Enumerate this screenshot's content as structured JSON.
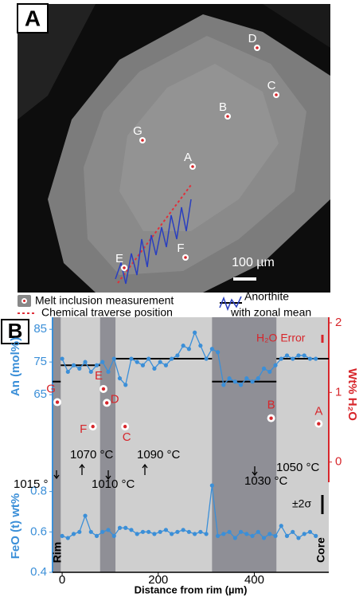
{
  "panel_a": {
    "label": "A",
    "scale_bar": "100 µm",
    "inclusions": [
      "D",
      "C",
      "B",
      "G",
      "A",
      "F",
      "E"
    ]
  },
  "legend": {
    "melt": "Melt inclusion measurement",
    "traverse": "Chemical traverse position",
    "anorthite": "Anorthite",
    "anorthite_2": "with zonal mean"
  },
  "chart_data": {
    "type": "line",
    "panel_label": "B",
    "xlabel": "Distance from rim (µm)",
    "xlim": [
      -20,
      555
    ],
    "xticks": [
      0,
      200,
      400
    ],
    "x": [
      0,
      12,
      24,
      36,
      48,
      60,
      72,
      84,
      96,
      108,
      120,
      132,
      144,
      156,
      168,
      180,
      192,
      204,
      216,
      228,
      240,
      252,
      264,
      276,
      288,
      300,
      312,
      324,
      336,
      348,
      360,
      372,
      384,
      396,
      408,
      420,
      432,
      444,
      456,
      468,
      480,
      492,
      504,
      516,
      528
    ],
    "series": [
      {
        "name": "An (mol%)",
        "color": "#3b8fd8",
        "axis": "y",
        "values": [
          76,
          72,
          74,
          73,
          75,
          72,
          74,
          75,
          72,
          76,
          70,
          68,
          76,
          75,
          74,
          76,
          73,
          75,
          74,
          76,
          77,
          80,
          79,
          84,
          80,
          76,
          79,
          78,
          68,
          70,
          69,
          68,
          70,
          69,
          70,
          73,
          72,
          74,
          76,
          77,
          76,
          77,
          77,
          76,
          76
        ]
      },
      {
        "name": "Wt% H₂O",
        "color": "#d7262b",
        "axis": "y2",
        "type": "scatter",
        "x": [
          -10,
          86,
          93,
          64,
          131,
          435,
          534
        ],
        "values": [
          0.86,
          1.05,
          0.85,
          0.51,
          0.51,
          0.63,
          0.55
        ],
        "point_labels": [
          "G",
          "E",
          "D",
          "F",
          "C",
          "B",
          "A"
        ]
      },
      {
        "name": "FeO (t) wt%",
        "color": "#3b8fd8",
        "axis": "y3",
        "values": [
          0.58,
          0.57,
          0.59,
          0.6,
          0.68,
          0.6,
          0.58,
          0.6,
          0.61,
          0.58,
          0.62,
          0.62,
          0.61,
          0.59,
          0.6,
          0.6,
          0.59,
          0.6,
          0.61,
          0.59,
          0.6,
          0.61,
          0.6,
          0.59,
          0.6,
          0.59,
          0.83,
          0.58,
          0.59,
          0.6,
          0.57,
          0.6,
          0.59,
          0.58,
          0.6,
          0.57,
          0.59,
          0.58,
          0.63,
          0.58,
          0.6,
          0.57,
          0.59,
          0.6,
          0.58
        ]
      }
    ],
    "ylim": [
      38.2,
      88.7
    ],
    "yticks": [
      65,
      75,
      85
    ],
    "y2lim": [
      -0.29,
      2.08
    ],
    "y2ticks": [
      0,
      1,
      2
    ],
    "y3lim": [
      0.4,
      0.846
    ],
    "y3ticks": [
      0.4,
      0.6,
      0.8
    ],
    "zonal_means": [
      {
        "x": [
          -20,
          -3
        ],
        "value": 69
      },
      {
        "x": [
          -3,
          79
        ],
        "value": 74
      },
      {
        "x": [
          111,
          312
        ],
        "value": 76
      },
      {
        "x": [
          312,
          446
        ],
        "value": 69
      },
      {
        "x": [
          446,
          555
        ],
        "value": 76
      }
    ],
    "shaded_zones": [
      [
        -20,
        -3
      ],
      [
        79,
        111
      ],
      [
        312,
        446
      ]
    ],
    "annotations": [
      "1015 °",
      "1070 °C",
      "1010 °C",
      "1090 °C",
      "1030 °C",
      "1050 °C"
    ],
    "rim_label": "Rim",
    "core_label": "Core",
    "error_label": "H₂O Error",
    "sigma_label": "±2σ"
  }
}
